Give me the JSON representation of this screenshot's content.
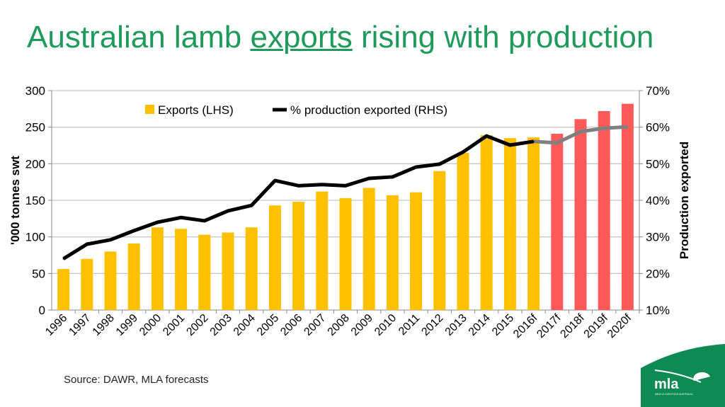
{
  "slide": {
    "title_pre": "Australian lamb ",
    "title_underlined": "exports",
    "title_post": " rising with production",
    "source": "Source: DAWR, MLA forecasts",
    "logo_text": "mla",
    "logo_subtext": "MEAT & LIVESTOCK AUSTRALIA"
  },
  "colors": {
    "title": "#1f9a5c",
    "exports": "#ffc000",
    "exports_forecast": "#ff5a5a",
    "line": "#000000",
    "line_forecast": "#808080",
    "brand_green": "#0e8a55"
  },
  "chart_data": {
    "type": "bar+line",
    "categories": [
      "1996",
      "1997",
      "1998",
      "1999",
      "2000",
      "2001",
      "2002",
      "2003",
      "2004",
      "2005",
      "2006",
      "2007",
      "2008",
      "2009",
      "2010",
      "2011",
      "2012",
      "2013",
      "2014",
      "2015",
      "2016f",
      "2017f",
      "2018f",
      "2019f",
      "2020f"
    ],
    "forecast_from": "2017f",
    "series": [
      {
        "name": "Exports (LHS)",
        "type": "bar",
        "axis": "left",
        "values": [
          56,
          70,
          80,
          91,
          113,
          111,
          103,
          106,
          113,
          143,
          148,
          162,
          153,
          167,
          157,
          161,
          190,
          215,
          239,
          235,
          236,
          241,
          261,
          272,
          282
        ]
      },
      {
        "name": "% production exported (RHS)",
        "type": "line",
        "axis": "right",
        "values": [
          24,
          28,
          29.2,
          31.7,
          34,
          35.3,
          34.4,
          37.1,
          38.6,
          45.4,
          44,
          44.3,
          44,
          46,
          46.4,
          49.1,
          49.9,
          53.2,
          57.6,
          55.1,
          56.1,
          55.7,
          58.8,
          59.7,
          60.1
        ]
      }
    ],
    "ylabel": "'000 tonnes swt",
    "y2label": "Production exported",
    "ylim": [
      0,
      300
    ],
    "yticks": [
      "0",
      "50",
      "100",
      "150",
      "200",
      "250",
      "300"
    ],
    "y2lim": [
      10,
      70
    ],
    "y2ticks": [
      "10%",
      "20%",
      "30%",
      "40%",
      "50%",
      "60%",
      "70%"
    ],
    "grid": true,
    "legend": "top-inside"
  }
}
